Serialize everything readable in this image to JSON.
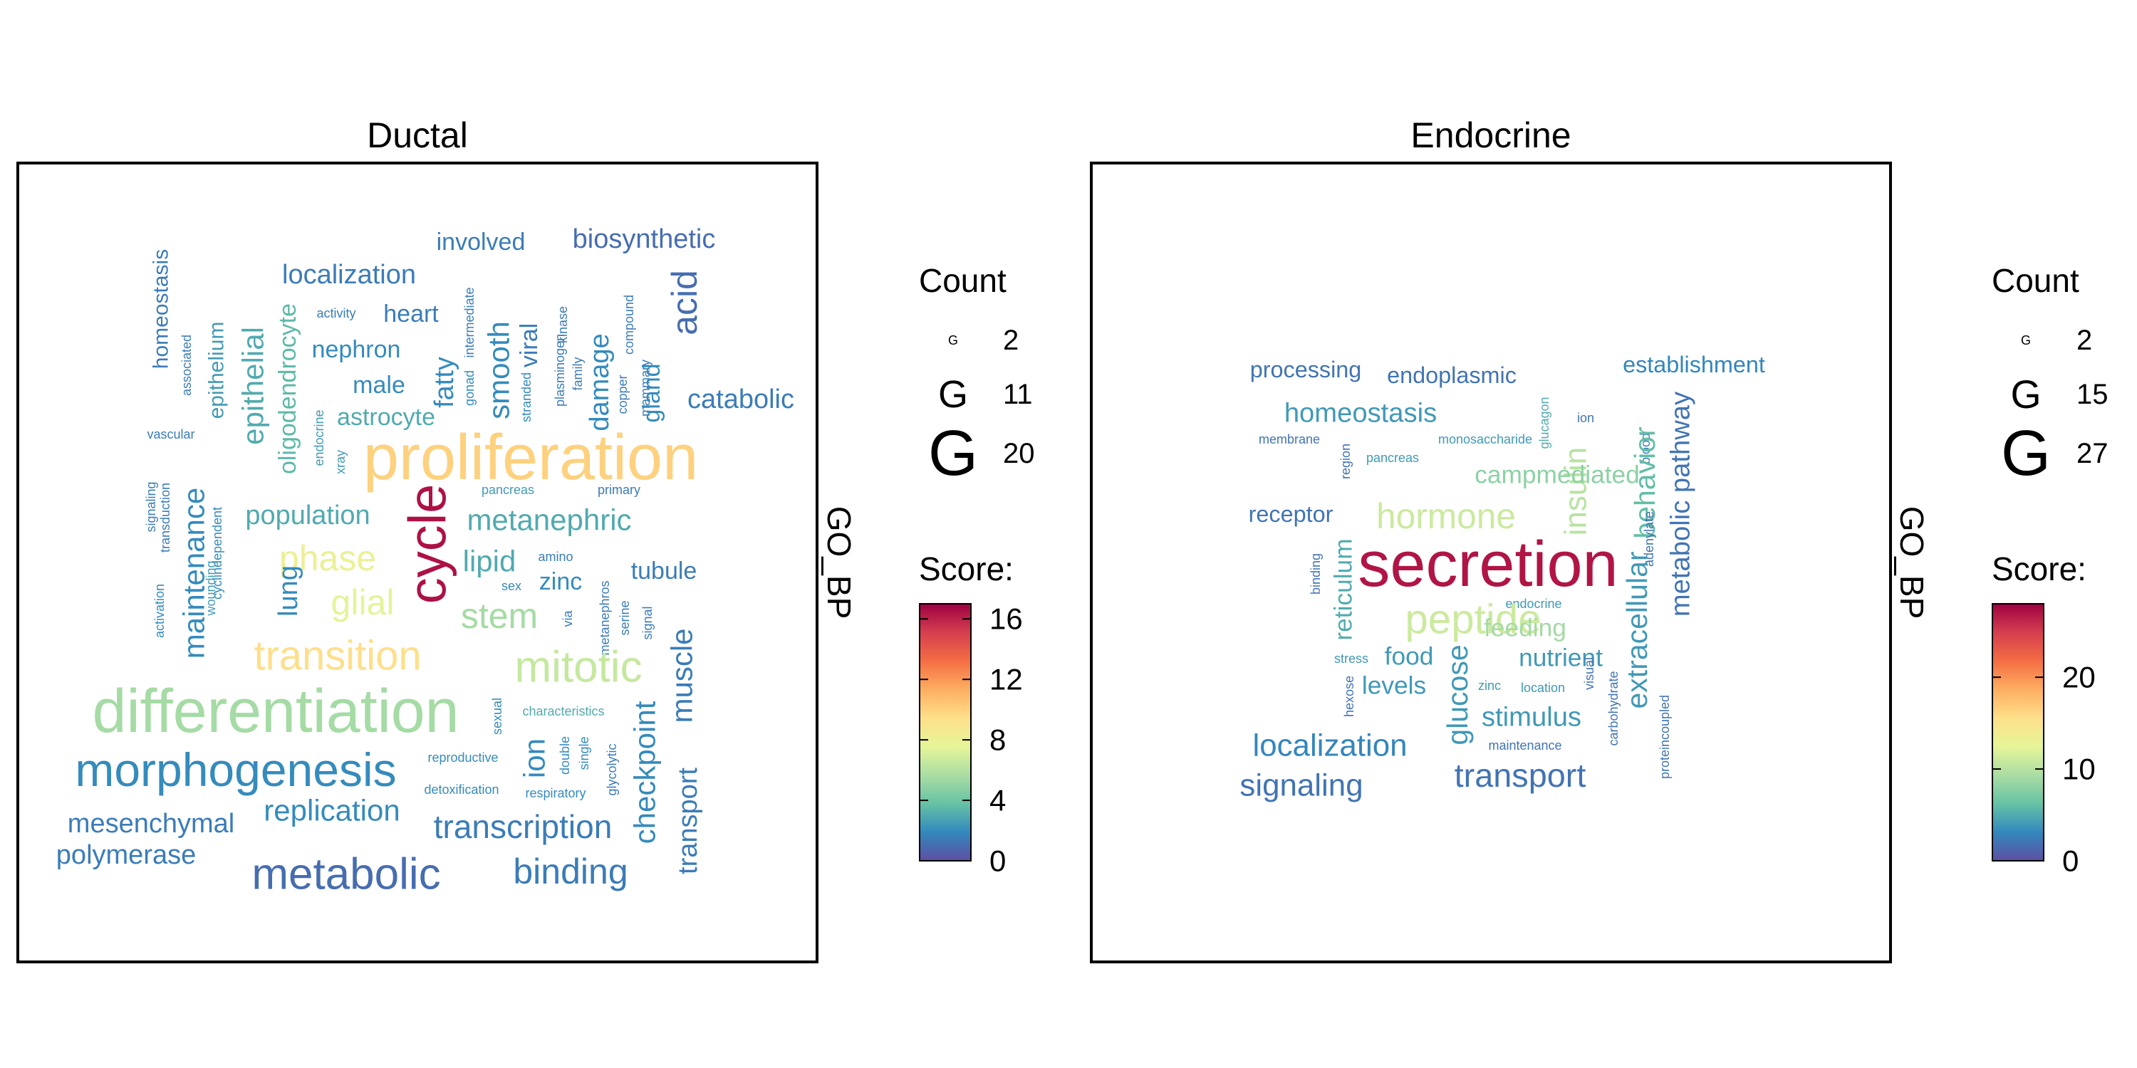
{
  "chart_data": [
    {
      "type": "wordcloud",
      "title": "Ductal",
      "side_label": "GO_BP",
      "legend": {
        "count_title": "Count",
        "count_glyph": "G",
        "count_entries": [
          2,
          11,
          20
        ],
        "score_title": "Score:",
        "score_ticks": [
          0,
          4,
          8,
          12,
          16
        ],
        "score_range": [
          0,
          17
        ]
      },
      "colormap": [
        "#5e4fa2",
        "#3288bd",
        "#66c2a5",
        "#abdda4",
        "#e6f598",
        "#fee08b",
        "#fdae61",
        "#f46d43",
        "#d53e4f",
        "#9e0142"
      ],
      "words": [
        {
          "text": "homeostasis",
          "score": 1.5,
          "count": 5,
          "rotate": true
        },
        {
          "text": "associated",
          "score": 1.5,
          "count": 2,
          "rotate": true
        },
        {
          "text": "epithelium",
          "score": 2.5,
          "count": 5,
          "rotate": true
        },
        {
          "text": "vascular",
          "score": 1.5,
          "count": 2,
          "rotate": false
        },
        {
          "text": "signaling",
          "score": 1.5,
          "count": 2,
          "rotate": true
        },
        {
          "text": "transduction",
          "score": 1.5,
          "count": 2,
          "rotate": true
        },
        {
          "text": "maintenance",
          "score": 2,
          "count": 8,
          "rotate": true
        },
        {
          "text": "cyclindependent",
          "score": 2,
          "count": 2,
          "rotate": true
        },
        {
          "text": "activation",
          "score": 2,
          "count": 2,
          "rotate": true
        },
        {
          "text": "wounding",
          "score": 2.5,
          "count": 2,
          "rotate": true
        },
        {
          "text": "epithelial",
          "score": 3,
          "count": 8,
          "rotate": true
        },
        {
          "text": "oligodendrocyte",
          "score": 3.5,
          "count": 6,
          "rotate": true
        },
        {
          "text": "localization",
          "score": 1.5,
          "count": 7,
          "rotate": false
        },
        {
          "text": "activity",
          "score": 1.5,
          "count": 2,
          "rotate": false
        },
        {
          "text": "heart",
          "score": 1.5,
          "count": 6,
          "rotate": false
        },
        {
          "text": "involved",
          "score": 1.5,
          "count": 6,
          "rotate": false
        },
        {
          "text": "biosynthetic",
          "score": 1,
          "count": 7,
          "rotate": false
        },
        {
          "text": "nephron",
          "score": 2,
          "count": 6,
          "rotate": false
        },
        {
          "text": "male",
          "score": 2,
          "count": 6,
          "rotate": false
        },
        {
          "text": "astrocyte",
          "score": 3,
          "count": 6,
          "rotate": false
        },
        {
          "text": "endocrine",
          "score": 2.5,
          "count": 2,
          "rotate": true
        },
        {
          "text": "xray",
          "score": 2.5,
          "count": 2,
          "rotate": true
        },
        {
          "text": "intermediate",
          "score": 1.5,
          "count": 2,
          "rotate": true
        },
        {
          "text": "fatty",
          "score": 2,
          "count": 7,
          "rotate": true
        },
        {
          "text": "gonad",
          "score": 2,
          "count": 2,
          "rotate": true
        },
        {
          "text": "smooth",
          "score": 2,
          "count": 8,
          "rotate": true
        },
        {
          "text": "viral",
          "score": 1.5,
          "count": 6,
          "rotate": true
        },
        {
          "text": "stranded",
          "score": 2,
          "count": 2,
          "rotate": true
        },
        {
          "text": "kinase",
          "score": 1.5,
          "count": 2,
          "rotate": true
        },
        {
          "text": "plasminogen",
          "score": 1.5,
          "count": 2,
          "rotate": true
        },
        {
          "text": "family",
          "score": 1.5,
          "count": 2,
          "rotate": true
        },
        {
          "text": "damage",
          "score": 2,
          "count": 7,
          "rotate": true
        },
        {
          "text": "copper",
          "score": 1.5,
          "count": 2,
          "rotate": true
        },
        {
          "text": "compound",
          "score": 1.5,
          "count": 2,
          "rotate": true
        },
        {
          "text": "mammary",
          "score": 1.5,
          "count": 2,
          "rotate": true
        },
        {
          "text": "gland",
          "score": 2,
          "count": 6,
          "rotate": true
        },
        {
          "text": "acid",
          "score": 1,
          "count": 10,
          "rotate": true
        },
        {
          "text": "catabolic",
          "score": 1.5,
          "count": 7,
          "rotate": false
        },
        {
          "text": "proliferation",
          "score": 10,
          "count": 20,
          "rotate": false
        },
        {
          "text": "cycle",
          "score": 16.5,
          "count": 16,
          "rotate": true
        },
        {
          "text": "pancreas",
          "score": 2.5,
          "count": 2,
          "rotate": false
        },
        {
          "text": "primary",
          "score": 1.5,
          "count": 2,
          "rotate": false
        },
        {
          "text": "population",
          "score": 3,
          "count": 7,
          "rotate": false
        },
        {
          "text": "metanephric",
          "score": 3,
          "count": 8,
          "rotate": false
        },
        {
          "text": "phase",
          "score": 8,
          "count": 10,
          "rotate": false
        },
        {
          "text": "lipid",
          "score": 3,
          "count": 8,
          "rotate": false
        },
        {
          "text": "amino",
          "score": 1.5,
          "count": 2,
          "rotate": false
        },
        {
          "text": "tubule",
          "score": 1.5,
          "count": 6,
          "rotate": false
        },
        {
          "text": "zinc",
          "score": 2,
          "count": 6,
          "rotate": false
        },
        {
          "text": "sex",
          "score": 2,
          "count": 2,
          "rotate": false
        },
        {
          "text": "lung",
          "score": 2,
          "count": 7,
          "rotate": true
        },
        {
          "text": "glial",
          "score": 7.5,
          "count": 10,
          "rotate": false
        },
        {
          "text": "stem",
          "score": 5.5,
          "count": 10,
          "rotate": false
        },
        {
          "text": "via",
          "score": 1.5,
          "count": 2,
          "rotate": true
        },
        {
          "text": "metanephros",
          "score": 1.5,
          "count": 2,
          "rotate": true
        },
        {
          "text": "serine",
          "score": 1.5,
          "count": 2,
          "rotate": true
        },
        {
          "text": "signal",
          "score": 1.5,
          "count": 2,
          "rotate": true
        },
        {
          "text": "transition",
          "score": 9.5,
          "count": 12,
          "rotate": false
        },
        {
          "text": "mitotic",
          "score": 6.5,
          "count": 13,
          "rotate": false
        },
        {
          "text": "muscle",
          "score": 1.5,
          "count": 8,
          "rotate": true
        },
        {
          "text": "differentiation",
          "score": 5.5,
          "count": 19,
          "rotate": false
        },
        {
          "text": "sexual",
          "score": 2,
          "count": 2,
          "rotate": true
        },
        {
          "text": "characteristics",
          "score": 3,
          "count": 2,
          "rotate": false
        },
        {
          "text": "checkpoint",
          "score": 2,
          "count": 8,
          "rotate": true
        },
        {
          "text": "ion",
          "score": 2,
          "count": 8,
          "rotate": true
        },
        {
          "text": "double",
          "score": 2,
          "count": 2,
          "rotate": true
        },
        {
          "text": "single",
          "score": 2,
          "count": 2,
          "rotate": true
        },
        {
          "text": "glycolytic",
          "score": 1.5,
          "count": 2,
          "rotate": true
        },
        {
          "text": "reproductive",
          "score": 2,
          "count": 2,
          "rotate": false
        },
        {
          "text": "morphogenesis",
          "score": 2,
          "count": 14,
          "rotate": false
        },
        {
          "text": "detoxification",
          "score": 2,
          "count": 2,
          "rotate": false
        },
        {
          "text": "respiratory",
          "score": 2,
          "count": 2,
          "rotate": false
        },
        {
          "text": "transport",
          "score": 1.5,
          "count": 7,
          "rotate": true
        },
        {
          "text": "replication",
          "score": 2,
          "count": 8,
          "rotate": false
        },
        {
          "text": "mesenchymal",
          "score": 1.5,
          "count": 7,
          "rotate": false
        },
        {
          "text": "transcription",
          "score": 1.5,
          "count": 9,
          "rotate": false
        },
        {
          "text": "polymerase",
          "score": 1.5,
          "count": 7,
          "rotate": false
        },
        {
          "text": "metabolic",
          "score": 1,
          "count": 13,
          "rotate": false
        },
        {
          "text": "binding",
          "score": 1.5,
          "count": 10,
          "rotate": false
        }
      ]
    },
    {
      "type": "wordcloud",
      "title": "Endocrine",
      "side_label": "GO_BP",
      "legend": {
        "count_title": "Count",
        "count_glyph": "G",
        "count_entries": [
          2,
          15,
          27
        ],
        "score_title": "Score:",
        "score_ticks": [
          0,
          10,
          20
        ],
        "score_range": [
          0,
          28
        ]
      },
      "colormap": [
        "#5e4fa2",
        "#3288bd",
        "#66c2a5",
        "#abdda4",
        "#e6f598",
        "#fee08b",
        "#fdae61",
        "#f46d43",
        "#d53e4f",
        "#9e0142"
      ],
      "words": [
        {
          "text": "processing",
          "score": 2,
          "count": 7,
          "rotate": false
        },
        {
          "text": "endoplasmic",
          "score": 2,
          "count": 7,
          "rotate": false
        },
        {
          "text": "establishment",
          "score": 3,
          "count": 7,
          "rotate": false
        },
        {
          "text": "homeostasis",
          "score": 4,
          "count": 9,
          "rotate": false
        },
        {
          "text": "glucagon",
          "score": 5,
          "count": 2,
          "rotate": true
        },
        {
          "text": "ion",
          "score": 2,
          "count": 2,
          "rotate": false
        },
        {
          "text": "membrane",
          "score": 2,
          "count": 2,
          "rotate": false
        },
        {
          "text": "monosaccharide",
          "score": 4,
          "count": 2,
          "rotate": false
        },
        {
          "text": "region",
          "score": 2,
          "count": 2,
          "rotate": true
        },
        {
          "text": "pancreas",
          "score": 4,
          "count": 2,
          "rotate": false
        },
        {
          "text": "blood",
          "score": 2,
          "count": 2,
          "rotate": true
        },
        {
          "text": "insulin",
          "score": 10,
          "count": 11,
          "rotate": true
        },
        {
          "text": "behavior",
          "score": 6,
          "count": 10,
          "rotate": true
        },
        {
          "text": "metabolic pathway",
          "score": 2,
          "count": 9,
          "rotate": true
        },
        {
          "text": "campmediated",
          "score": 8,
          "count": 8,
          "rotate": false
        },
        {
          "text": "receptor",
          "score": 2,
          "count": 7,
          "rotate": false
        },
        {
          "text": "hormone",
          "score": 11,
          "count": 13,
          "rotate": false
        },
        {
          "text": "adenylate",
          "score": 2,
          "count": 2,
          "rotate": true
        },
        {
          "text": "binding",
          "score": 2,
          "count": 2,
          "rotate": true
        },
        {
          "text": "reticulum",
          "score": 5,
          "count": 8,
          "rotate": true
        },
        {
          "text": "secretion",
          "score": 27,
          "count": 27,
          "rotate": false
        },
        {
          "text": "endocrine",
          "score": 4,
          "count": 2,
          "rotate": false
        },
        {
          "text": "peptide",
          "score": 11,
          "count": 16,
          "rotate": false
        },
        {
          "text": "feeding",
          "score": 9,
          "count": 8,
          "rotate": false
        },
        {
          "text": "extracellular",
          "score": 4,
          "count": 10,
          "rotate": true
        },
        {
          "text": "stress",
          "score": 4,
          "count": 2,
          "rotate": false
        },
        {
          "text": "food",
          "score": 4,
          "count": 8,
          "rotate": false
        },
        {
          "text": "nutrient",
          "score": 4,
          "count": 8,
          "rotate": false
        },
        {
          "text": "visual",
          "score": 2,
          "count": 2,
          "rotate": true
        },
        {
          "text": "levels",
          "score": 4,
          "count": 8,
          "rotate": false
        },
        {
          "text": "hexose",
          "score": 2,
          "count": 2,
          "rotate": true
        },
        {
          "text": "zinc",
          "score": 4,
          "count": 2,
          "rotate": false
        },
        {
          "text": "location",
          "score": 4,
          "count": 2,
          "rotate": false
        },
        {
          "text": "glucose",
          "score": 4,
          "count": 10,
          "rotate": true
        },
        {
          "text": "carbohydrate",
          "score": 2,
          "count": 2,
          "rotate": true
        },
        {
          "text": "proteincoupled",
          "score": 2,
          "count": 2,
          "rotate": true
        },
        {
          "text": "stimulus",
          "score": 4,
          "count": 9,
          "rotate": false
        },
        {
          "text": "maintenance",
          "score": 2,
          "count": 2,
          "rotate": false
        },
        {
          "text": "localization",
          "score": 3,
          "count": 11,
          "rotate": false
        },
        {
          "text": "transport",
          "score": 2,
          "count": 12,
          "rotate": false
        },
        {
          "text": "signaling",
          "score": 2,
          "count": 11,
          "rotate": false
        }
      ]
    }
  ]
}
